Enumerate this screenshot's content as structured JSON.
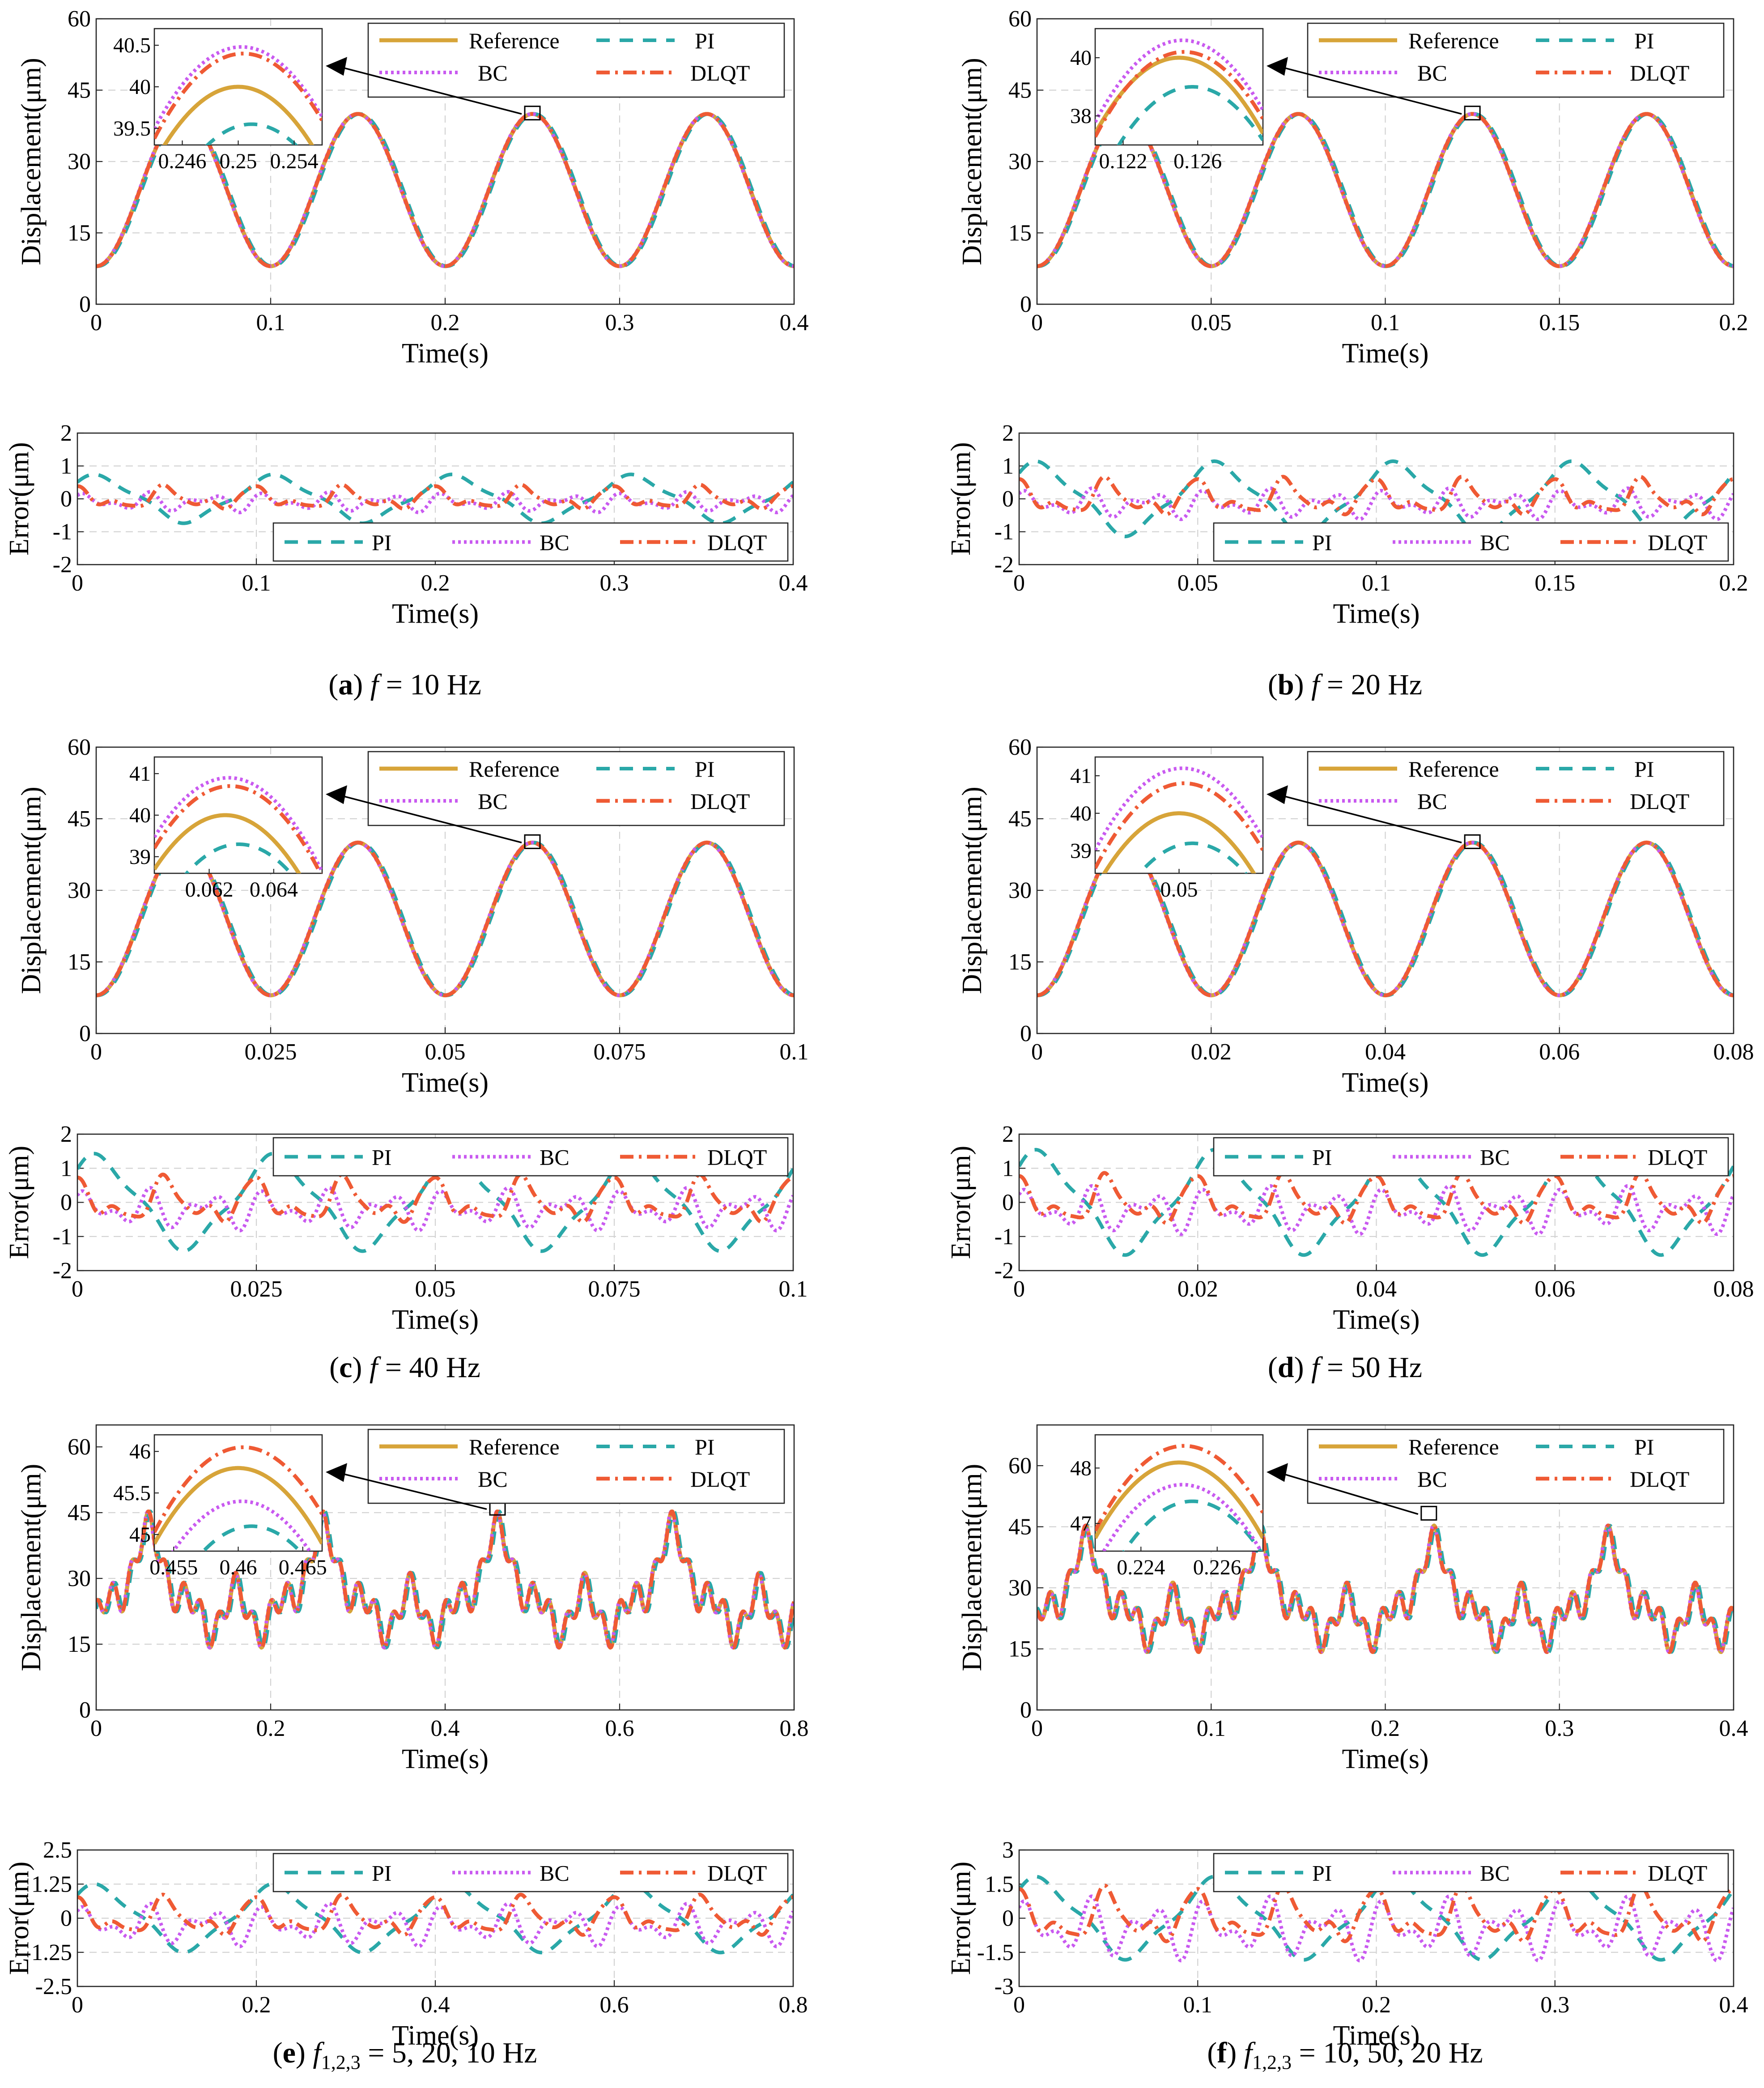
{
  "colors": {
    "reference": "#d7a439",
    "pi": "#2aa8a8",
    "bc": "#c95af0",
    "dlqt": "#ef5a34"
  },
  "chart_data": [
    {
      "type": "line",
      "caption": {
        "label": "a",
        "open": "(",
        "close": ")",
        "var": "f",
        "sub": "",
        "rest": " = 10 Hz"
      },
      "signal": {
        "kind": "sine",
        "f": 10,
        "amp": 16,
        "offset": 24,
        "x0": 0.025
      },
      "main": {
        "xlabel": "Time(s)",
        "ylabel": "Displacement(μm)",
        "xlim": [
          0,
          0.4
        ],
        "ylim": [
          0,
          60
        ],
        "xticks": [
          0,
          0.1,
          0.2,
          0.3,
          0.4
        ],
        "xticklabels": [
          "0",
          "0.1",
          "0.2",
          "0.3",
          "0.4"
        ],
        "yticks": [
          0,
          15,
          30,
          45,
          60
        ],
        "yticklabels": [
          "0",
          "15",
          "30",
          "45",
          "60"
        ],
        "legend": {
          "placement": "top-right",
          "reference": "Reference",
          "pi": "PI",
          "bc": "BC",
          "dlqt": "DLQT"
        },
        "peak": 0.25
      },
      "inset": {
        "xlim": [
          0.244,
          0.256
        ],
        "ylim": [
          39.3,
          40.7
        ],
        "xticks": [
          0.246,
          0.25,
          0.254
        ],
        "xticklabels": [
          "0.246",
          "0.25",
          "0.254"
        ],
        "yticks": [
          39.5,
          40,
          40.5
        ],
        "yticklabels": [
          "39.5",
          "40",
          "40.5"
        ],
        "peak_values": {
          "reference": 40.0,
          "pi": 39.55,
          "bc": 40.48,
          "dlqt": 40.4
        }
      },
      "error": {
        "xlabel": "Time(s)",
        "ylabel": "Error(μm)",
        "xlim": [
          0,
          0.4
        ],
        "ylim": [
          -2,
          2
        ],
        "xticks": [
          0,
          0.1,
          0.2,
          0.3,
          0.4
        ],
        "xticklabels": [
          "0",
          "0.1",
          "0.2",
          "0.3",
          "0.4"
        ],
        "yticks": [
          -2,
          -1,
          0,
          1,
          2
        ],
        "yticklabels": [
          "-2",
          "-1",
          "0",
          "1",
          "2"
        ],
        "legend": {
          "placement": "bottom-right",
          "pi": "PI",
          "bc": "BC",
          "dlqt": "DLQT"
        },
        "amplitude": {
          "pi": 0.65,
          "bc": 0.4,
          "dlqt": 0.45
        }
      }
    },
    {
      "type": "line",
      "caption": {
        "label": "b",
        "open": "(",
        "close": ")",
        "var": "f",
        "sub": "",
        "rest": " = 20 Hz"
      },
      "signal": {
        "kind": "sine",
        "f": 20,
        "amp": 16,
        "offset": 24,
        "x0": 0.0125
      },
      "main": {
        "xlabel": "Time(s)",
        "ylabel": "Displacement(μm)",
        "xlim": [
          0,
          0.2
        ],
        "ylim": [
          0,
          60
        ],
        "xticks": [
          0,
          0.05,
          0.1,
          0.15,
          0.2
        ],
        "xticklabels": [
          "0",
          "0.05",
          "0.1",
          "0.15",
          "0.2"
        ],
        "yticks": [
          0,
          15,
          30,
          45,
          60
        ],
        "yticklabels": [
          "0",
          "15",
          "30",
          "45",
          "60"
        ],
        "legend": {
          "placement": "top-right",
          "reference": "Reference",
          "pi": "PI",
          "bc": "BC",
          "dlqt": "DLQT"
        },
        "peak": 0.125
      },
      "inset": {
        "xlim": [
          0.1205,
          0.1295
        ],
        "ylim": [
          37.0,
          41.0
        ],
        "xticks": [
          0.122,
          0.126
        ],
        "xticklabels": [
          "0.122",
          "0.126"
        ],
        "yticks": [
          38,
          40
        ],
        "yticklabels": [
          "38",
          "40"
        ],
        "peak_values": {
          "reference": 40.0,
          "pi": 39.0,
          "bc": 40.6,
          "dlqt": 40.2
        }
      },
      "error": {
        "xlabel": "Time(s)",
        "ylabel": "Error(μm)",
        "xlim": [
          0,
          0.2
        ],
        "ylim": [
          -2,
          2
        ],
        "xticks": [
          0,
          0.05,
          0.1,
          0.15,
          0.2
        ],
        "xticklabels": [
          "0",
          "0.05",
          "0.1",
          "0.15",
          "0.2"
        ],
        "yticks": [
          -2,
          -1,
          0,
          1,
          2
        ],
        "yticklabels": [
          "-2",
          "-1",
          "0",
          "1",
          "2"
        ],
        "legend": {
          "placement": "bottom-right",
          "pi": "PI",
          "bc": "BC",
          "dlqt": "DLQT"
        },
        "amplitude": {
          "pi": 1.0,
          "bc": 0.6,
          "dlqt": 0.7
        }
      }
    },
    {
      "type": "line",
      "caption": {
        "label": "c",
        "open": "(",
        "close": ")",
        "var": "f",
        "sub": "",
        "rest": " = 40 Hz"
      },
      "signal": {
        "kind": "sine",
        "f": 40,
        "amp": 16,
        "offset": 24,
        "x0": 0.00625
      },
      "main": {
        "xlabel": "Time(s)",
        "ylabel": "Displacement(μm)",
        "xlim": [
          0,
          0.1
        ],
        "ylim": [
          0,
          60
        ],
        "xticks": [
          0,
          0.025,
          0.05,
          0.075,
          0.1
        ],
        "xticklabels": [
          "0",
          "0.025",
          "0.05",
          "0.075",
          "0.1"
        ],
        "yticks": [
          0,
          15,
          30,
          45,
          60
        ],
        "yticklabels": [
          "0",
          "15",
          "30",
          "45",
          "60"
        ],
        "legend": {
          "placement": "top-right",
          "reference": "Reference",
          "pi": "PI",
          "bc": "BC",
          "dlqt": "DLQT"
        },
        "peak": 0.0625
      },
      "inset": {
        "xlim": [
          0.0603,
          0.0655
        ],
        "ylim": [
          38.6,
          41.4
        ],
        "xticks": [
          0.062,
          0.064
        ],
        "xticklabels": [
          "0.062",
          "0.064"
        ],
        "yticks": [
          39,
          40,
          41
        ],
        "yticklabels": [
          "39",
          "40",
          "41"
        ],
        "peak_values": {
          "reference": 40.0,
          "pi": 39.3,
          "bc": 40.9,
          "dlqt": 40.7
        }
      },
      "error": {
        "xlabel": "Time(s)",
        "ylabel": "Error(μm)",
        "xlim": [
          0,
          0.1
        ],
        "ylim": [
          -2,
          2
        ],
        "xticks": [
          0,
          0.025,
          0.05,
          0.075,
          0.1
        ],
        "xticklabels": [
          "0",
          "0.025",
          "0.05",
          "0.075",
          "0.1"
        ],
        "yticks": [
          -2,
          -1,
          0,
          1,
          2
        ],
        "yticklabels": [
          "-2",
          "-1",
          "0",
          "1",
          "2"
        ],
        "legend": {
          "placement": "top-right",
          "pi": "PI",
          "bc": "BC",
          "dlqt": "DLQT"
        },
        "amplitude": {
          "pi": 1.25,
          "bc": 0.8,
          "dlqt": 0.85
        }
      }
    },
    {
      "type": "line",
      "caption": {
        "label": "d",
        "open": "(",
        "close": ")",
        "var": "f",
        "sub": "",
        "rest": " = 50 Hz"
      },
      "signal": {
        "kind": "sine",
        "f": 50,
        "amp": 16,
        "offset": 24,
        "x0": 0.005
      },
      "main": {
        "xlabel": "Time(s)",
        "ylabel": "Displacement(μm)",
        "xlim": [
          0,
          0.08
        ],
        "ylim": [
          0,
          60
        ],
        "xticks": [
          0,
          0.02,
          0.04,
          0.06,
          0.08
        ],
        "xticklabels": [
          "0",
          "0.02",
          "0.04",
          "0.06",
          "0.08"
        ],
        "yticks": [
          0,
          15,
          30,
          45,
          60
        ],
        "yticklabels": [
          "0",
          "15",
          "30",
          "45",
          "60"
        ],
        "legend": {
          "placement": "top-right",
          "reference": "Reference",
          "pi": "PI",
          "bc": "BC",
          "dlqt": "DLQT"
        },
        "peak": 0.05
      },
      "inset": {
        "xlim": [
          0.0479,
          0.0521
        ],
        "ylim": [
          38.4,
          41.5
        ],
        "xticks": [
          0.05
        ],
        "xticklabels": [
          "0.05"
        ],
        "yticks": [
          39,
          40,
          41
        ],
        "yticklabels": [
          "39",
          "40",
          "41"
        ],
        "peak_values": {
          "reference": 40.0,
          "pi": 39.2,
          "bc": 41.2,
          "dlqt": 40.8
        }
      },
      "error": {
        "xlabel": "Time(s)",
        "ylabel": "Error(μm)",
        "xlim": [
          0,
          0.08
        ],
        "ylim": [
          -2,
          2
        ],
        "xticks": [
          0,
          0.02,
          0.04,
          0.06,
          0.08
        ],
        "xticklabels": [
          "0",
          "0.02",
          "0.04",
          "0.06",
          "0.08"
        ],
        "yticks": [
          -2,
          -1,
          0,
          1,
          2
        ],
        "yticklabels": [
          "-2",
          "-1",
          "0",
          "1",
          "2"
        ],
        "legend": {
          "placement": "top-right",
          "pi": "PI",
          "bc": "BC",
          "dlqt": "DLQT"
        },
        "amplitude": {
          "pi": 1.35,
          "bc": 0.9,
          "dlqt": 0.9
        }
      }
    },
    {
      "type": "line",
      "caption": {
        "label": "e",
        "open": "(",
        "close": ")",
        "var": "f",
        "sub": "1,2,3",
        "rest": " = 5, 20, 10 Hz"
      },
      "signal": {
        "kind": "multi",
        "base": 5,
        "x0": 0.06
      },
      "main": {
        "xlabel": "Time(s)",
        "ylabel": "Displacement(μm)",
        "xlim": [
          0,
          0.8
        ],
        "ylim": [
          0,
          65
        ],
        "xticks": [
          0,
          0.2,
          0.4,
          0.6,
          0.8
        ],
        "xticklabels": [
          "0",
          "0.2",
          "0.4",
          "0.6",
          "0.8"
        ],
        "yticks": [
          0,
          15,
          30,
          45,
          60
        ],
        "yticklabels": [
          "0",
          "15",
          "30",
          "45",
          "60"
        ],
        "legend": {
          "placement": "top-right",
          "reference": "Reference",
          "pi": "PI",
          "bc": "BC",
          "dlqt": "DLQT"
        },
        "peak": 0.46
      },
      "inset": {
        "xlim": [
          0.4535,
          0.4665
        ],
        "ylim": [
          44.8,
          46.2
        ],
        "xticks": [
          0.455,
          0.46,
          0.465
        ],
        "xticklabels": [
          "0.455",
          "0.46",
          "0.465"
        ],
        "yticks": [
          45,
          45.5,
          46
        ],
        "yticklabels": [
          "45",
          "45.5",
          "46"
        ],
        "peak_values": {
          "reference": 45.8,
          "pi": 45.1,
          "bc": 45.4,
          "dlqt": 46.05
        }
      },
      "error": {
        "xlabel": "Time(s)",
        "ylabel": "Error(μm)",
        "xlim": [
          0,
          0.8
        ],
        "ylim": [
          -2.5,
          2.5
        ],
        "xticks": [
          0,
          0.2,
          0.4,
          0.6,
          0.8
        ],
        "xticklabels": [
          "0",
          "0.2",
          "0.4",
          "0.6",
          "0.8"
        ],
        "yticks": [
          -2.5,
          -1.25,
          0,
          1.25,
          2.5
        ],
        "yticklabels": [
          "-2.5",
          "-1.25",
          "0",
          "1.25",
          "2.5"
        ],
        "legend": {
          "placement": "top-right",
          "pi": "PI",
          "bc": "BC",
          "dlqt": "DLQT"
        },
        "amplitude": {
          "pi": 1.1,
          "bc": 1.0,
          "dlqt": 0.9
        }
      }
    },
    {
      "type": "line",
      "caption": {
        "label": "f",
        "open": "(",
        "close": ")",
        "var": "f",
        "sub": "1,2,3",
        "rest": " = 10, 50, 20 Hz"
      },
      "signal": {
        "kind": "multi",
        "base": 10,
        "x0": 0.028
      },
      "main": {
        "xlabel": "Time(s)",
        "ylabel": "Displacement(μm)",
        "xlim": [
          0,
          0.4
        ],
        "ylim": [
          0,
          70
        ],
        "xticks": [
          0,
          0.1,
          0.2,
          0.3,
          0.4
        ],
        "xticklabels": [
          "0",
          "0.1",
          "0.2",
          "0.3",
          "0.4"
        ],
        "yticks": [
          0,
          15,
          30,
          45,
          60
        ],
        "yticklabels": [
          "0",
          "15",
          "30",
          "45",
          "60"
        ],
        "legend": {
          "placement": "top-right",
          "reference": "Reference",
          "pi": "PI",
          "bc": "BC",
          "dlqt": "DLQT"
        },
        "peak": 0.225
      },
      "inset": {
        "xlim": [
          0.2228,
          0.2272
        ],
        "ylim": [
          46.5,
          48.6
        ],
        "xticks": [
          0.224,
          0.226
        ],
        "xticklabels": [
          "0.224",
          "0.226"
        ],
        "yticks": [
          47,
          48
        ],
        "yticklabels": [
          "47",
          "48"
        ],
        "peak_values": {
          "reference": 48.1,
          "pi": 47.4,
          "bc": 47.7,
          "dlqt": 48.4
        }
      },
      "error": {
        "xlabel": "Time(s)",
        "ylabel": "Error(μm)",
        "xlim": [
          0,
          0.4
        ],
        "ylim": [
          -3,
          3
        ],
        "xticks": [
          0,
          0.1,
          0.2,
          0.3,
          0.4
        ],
        "xticklabels": [
          "0",
          "0.1",
          "0.2",
          "0.3",
          "0.4"
        ],
        "yticks": [
          -3,
          -1.5,
          0,
          1.5,
          3
        ],
        "yticklabels": [
          "-3",
          "-1.5",
          "0",
          "1.5",
          "3"
        ],
        "legend": {
          "placement": "top-right",
          "pi": "PI",
          "bc": "BC",
          "dlqt": "DLQT"
        },
        "amplitude": {
          "pi": 1.6,
          "bc": 1.8,
          "dlqt": 1.5
        }
      }
    }
  ]
}
